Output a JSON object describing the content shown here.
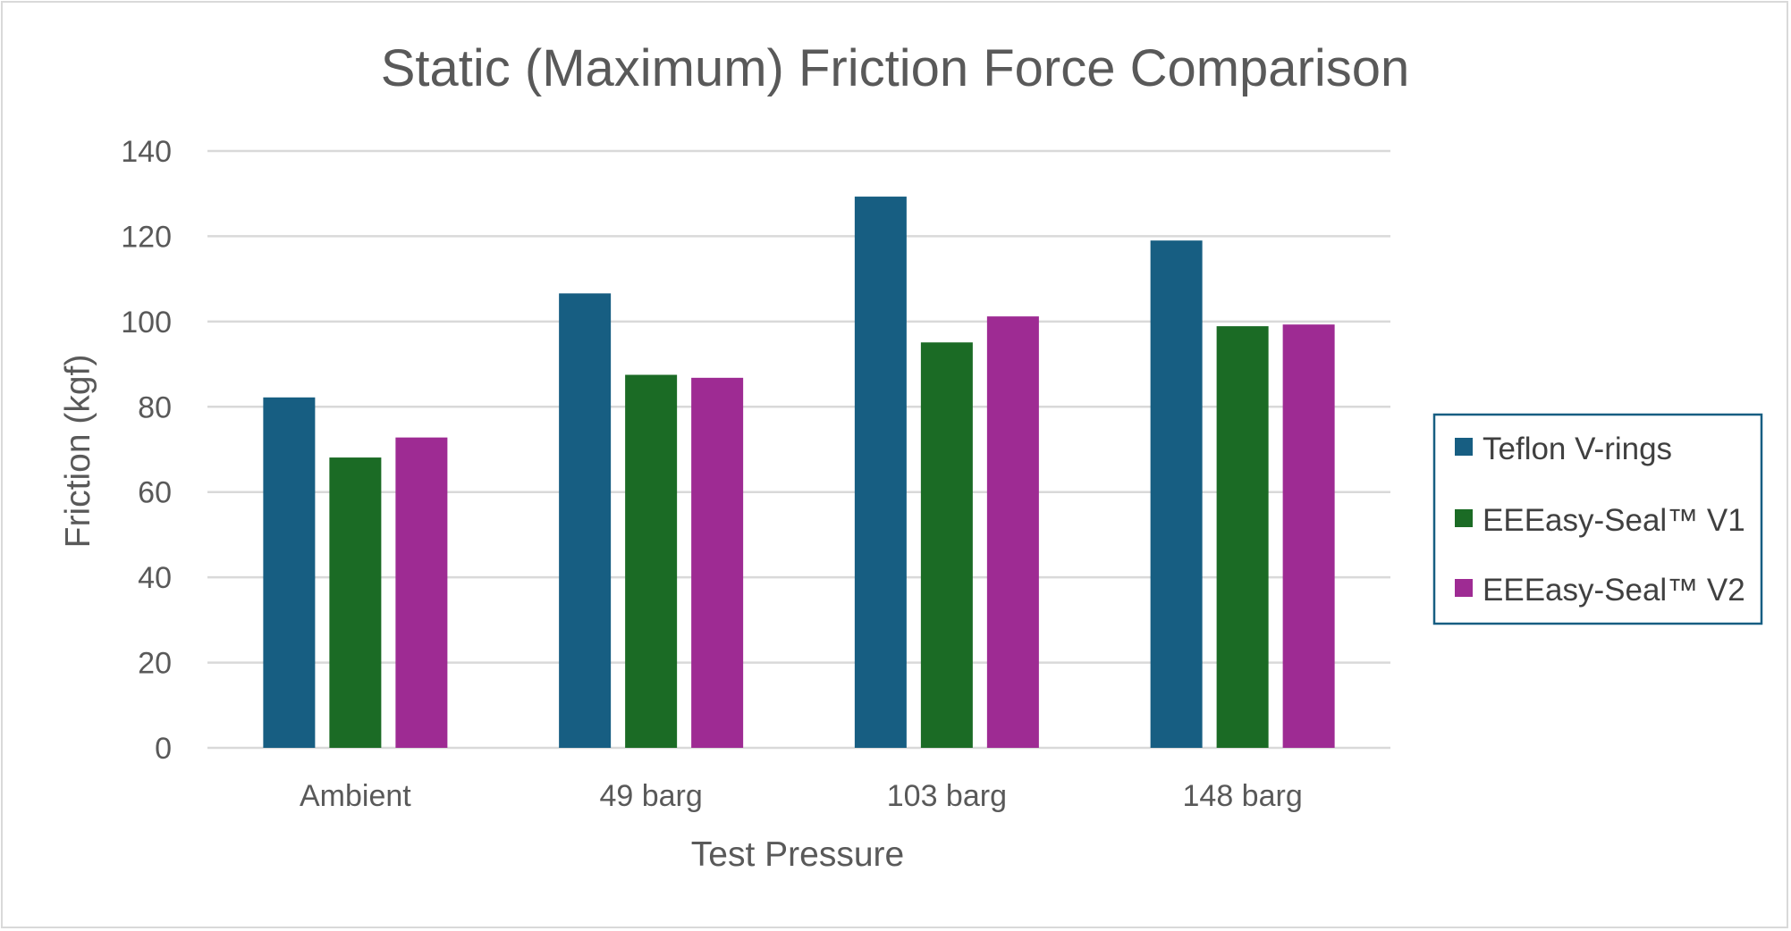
{
  "chart_data": {
    "type": "bar",
    "title": "Static (Maximum) Friction Force Comparison",
    "xlabel": "Test Pressure",
    "ylabel": "Friction (kgf)",
    "ylim": [
      0,
      140
    ],
    "yticks": [
      0,
      20,
      40,
      60,
      80,
      100,
      120,
      140
    ],
    "grid": true,
    "legend_position": "right",
    "categories": [
      "Ambient",
      "49 barg",
      "103 barg",
      "148 barg"
    ],
    "series": [
      {
        "name": "Teflon V-rings",
        "color": "#175e82",
        "values": [
          82.2,
          106.6,
          129.3,
          119.0
        ]
      },
      {
        "name": "EEEasy-Seal™ V1",
        "color": "#1b6b25",
        "values": [
          68.1,
          87.5,
          95.1,
          98.9
        ]
      },
      {
        "name": "EEEasy-Seal™ V2",
        "color": "#9e2b93",
        "values": [
          72.8,
          86.8,
          101.2,
          99.3
        ]
      }
    ],
    "gridline_color": "#d9d9d9",
    "legend_border_color": "#175e82"
  }
}
